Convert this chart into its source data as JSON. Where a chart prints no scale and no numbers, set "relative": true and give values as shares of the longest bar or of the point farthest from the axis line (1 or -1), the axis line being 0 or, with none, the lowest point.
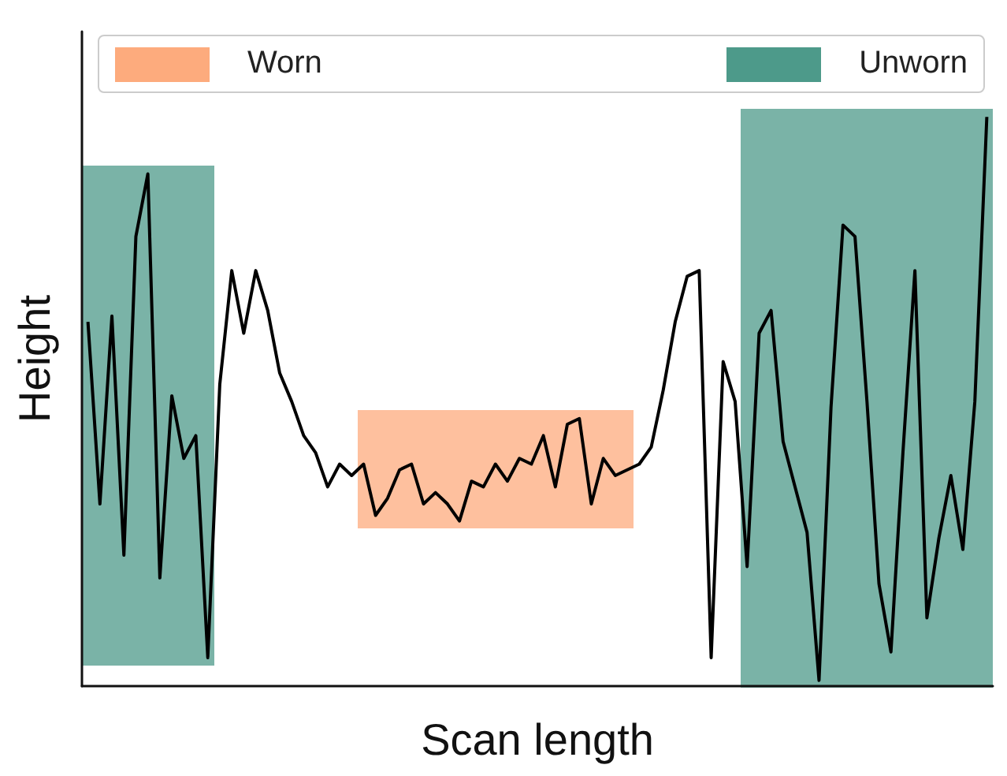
{
  "chart_data": {
    "type": "line",
    "relative": true,
    "xlabel": "Scan length",
    "ylabel": "Height",
    "grid": false,
    "marker": "none",
    "line_style": "solid",
    "annotations": [
      "Worn",
      "Unworn"
    ],
    "categories": [
      null,
      null,
      null,
      null,
      null,
      null,
      null,
      null,
      null,
      null,
      null,
      null,
      null,
      null,
      null,
      null,
      null,
      null,
      null,
      null,
      null,
      null,
      null,
      null,
      null,
      null,
      null,
      null,
      null,
      null,
      null,
      null,
      null,
      null,
      null,
      null,
      null,
      null,
      null,
      null,
      null,
      null,
      null,
      null,
      null,
      null,
      null,
      null,
      null,
      null,
      null,
      null,
      null,
      null,
      null,
      null,
      null,
      null,
      null,
      null,
      null,
      null,
      null,
      null,
      null,
      null,
      null,
      null,
      null,
      null,
      null,
      null,
      null,
      null,
      null,
      null
    ],
    "series": [
      {
        "color": "#000000",
        "values": [
          0.64,
          0.32,
          0.65,
          0.23,
          0.79,
          0.9,
          0.19,
          0.51,
          0.4,
          0.44,
          0.05,
          0.53,
          0.73,
          0.62,
          0.73,
          0.66,
          0.55,
          0.5,
          0.44,
          0.41,
          0.35,
          0.39,
          0.37,
          0.39,
          0.3,
          0.33,
          0.38,
          0.39,
          0.32,
          0.34,
          0.32,
          0.29,
          0.36,
          0.35,
          0.39,
          0.36,
          0.4,
          0.39,
          0.44,
          0.35,
          0.46,
          0.47,
          0.32,
          0.4,
          0.37,
          0.38,
          0.39,
          0.42,
          0.52,
          0.64,
          0.72,
          0.73,
          0.05,
          0.57,
          0.5,
          0.21,
          0.62,
          0.66,
          0.43,
          0.35,
          0.27,
          0.01,
          0.49,
          0.81,
          0.79,
          0.5,
          0.18,
          0.06,
          0.41,
          0.73,
          0.12,
          0.26,
          0.37,
          0.24,
          0.5,
          1.0
        ]
      }
    ]
  }
}
